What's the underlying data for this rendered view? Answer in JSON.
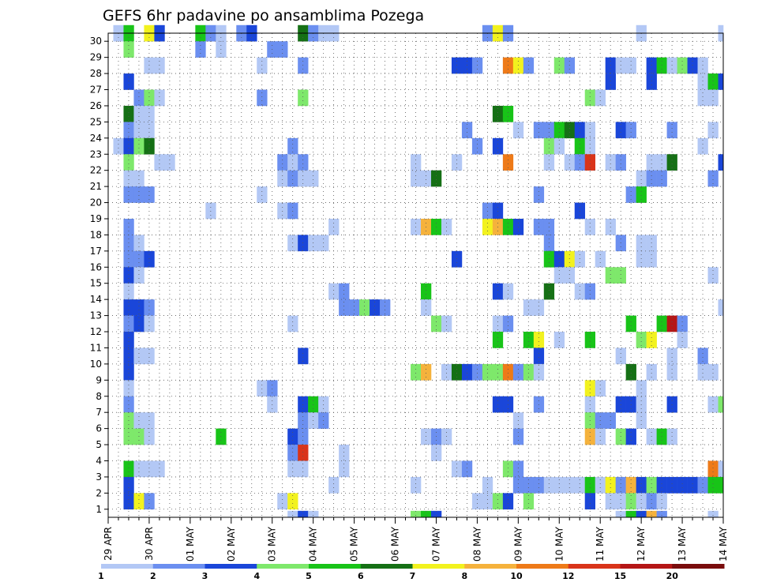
{
  "chart_data": {
    "type": "heatmap",
    "title": "GEFS 6hr padavine po ansamblima Pozega",
    "xlabel": "",
    "ylabel": "",
    "y_members": [
      1,
      2,
      3,
      4,
      5,
      6,
      7,
      8,
      9,
      10,
      11,
      12,
      13,
      14,
      15,
      16,
      17,
      18,
      19,
      20,
      21,
      22,
      23,
      24,
      25,
      26,
      27,
      28,
      29,
      30
    ],
    "x_ticks": [
      "29 APR",
      "30 APR",
      "01 MAY",
      "02 MAY",
      "03 MAY",
      "04 MAY",
      "05 MAY",
      "06 MAY",
      "07 MAY",
      "08 MAY",
      "09 MAY",
      "10 MAY",
      "11 MAY",
      "12 MAY",
      "13 MAY",
      "14 MAY"
    ],
    "x_steps": 61,
    "step_hours": 6,
    "grid": true,
    "colorbar": {
      "ticks": [
        "1",
        "2",
        "3",
        "4",
        "5",
        "6",
        "7",
        "8",
        "10",
        "12",
        "15",
        "20"
      ],
      "colors": [
        "#b3c8f5",
        "#6b8ff0",
        "#1a46d9",
        "#7ee86b",
        "#18c418",
        "#157015",
        "#f2f21e",
        "#f5b23c",
        "#ee7a18",
        "#d9341a",
        "#b51616",
        "#7a0d0d"
      ]
    },
    "cells": [
      [
        30,
        1,
        1
      ],
      [
        30,
        2,
        5
      ],
      [
        30,
        4,
        7
      ],
      [
        30,
        5,
        3
      ],
      [
        30,
        9,
        5
      ],
      [
        30,
        10,
        2
      ],
      [
        30,
        11,
        1
      ],
      [
        30,
        13,
        2
      ],
      [
        30,
        14,
        3
      ],
      [
        30,
        19,
        6
      ],
      [
        30,
        20,
        2
      ],
      [
        30,
        21,
        1
      ],
      [
        30,
        22,
        1
      ],
      [
        30,
        37,
        2
      ],
      [
        30,
        38,
        7
      ],
      [
        30,
        39,
        2
      ],
      [
        30,
        52,
        1
      ],
      [
        30,
        60,
        1
      ],
      [
        29,
        2,
        4
      ],
      [
        29,
        9,
        2
      ],
      [
        29,
        11,
        1
      ],
      [
        29,
        16,
        2
      ],
      [
        29,
        17,
        2
      ],
      [
        28,
        4,
        1
      ],
      [
        28,
        5,
        1
      ],
      [
        28,
        15,
        1
      ],
      [
        28,
        19,
        2
      ],
      [
        28,
        34,
        3
      ],
      [
        28,
        35,
        3
      ],
      [
        28,
        36,
        2
      ],
      [
        28,
        39,
        9
      ],
      [
        28,
        40,
        7
      ],
      [
        28,
        41,
        2
      ],
      [
        28,
        44,
        4
      ],
      [
        28,
        45,
        2
      ],
      [
        28,
        49,
        3
      ],
      [
        28,
        50,
        1
      ],
      [
        28,
        51,
        1
      ],
      [
        28,
        53,
        3
      ],
      [
        28,
        54,
        5
      ],
      [
        28,
        55,
        1
      ],
      [
        28,
        56,
        4
      ],
      [
        28,
        57,
        3
      ],
      [
        28,
        58,
        1
      ],
      [
        27,
        2,
        3
      ],
      [
        27,
        49,
        3
      ],
      [
        27,
        53,
        3
      ],
      [
        27,
        58,
        1
      ],
      [
        27,
        59,
        5
      ],
      [
        27,
        60,
        3
      ],
      [
        26,
        3,
        2
      ],
      [
        26,
        4,
        4
      ],
      [
        26,
        5,
        1
      ],
      [
        26,
        15,
        2
      ],
      [
        26,
        19,
        4
      ],
      [
        26,
        47,
        4
      ],
      [
        26,
        48,
        1
      ],
      [
        26,
        58,
        1
      ],
      [
        26,
        59,
        1
      ],
      [
        25,
        2,
        6
      ],
      [
        25,
        3,
        1
      ],
      [
        25,
        4,
        1
      ],
      [
        25,
        38,
        6
      ],
      [
        25,
        39,
        5
      ],
      [
        24,
        2,
        2
      ],
      [
        24,
        3,
        1
      ],
      [
        24,
        4,
        1
      ],
      [
        24,
        35,
        2
      ],
      [
        24,
        40,
        1
      ],
      [
        24,
        42,
        2
      ],
      [
        24,
        43,
        2
      ],
      [
        24,
        44,
        5
      ],
      [
        24,
        45,
        6
      ],
      [
        24,
        46,
        3
      ],
      [
        24,
        47,
        1
      ],
      [
        24,
        50,
        3
      ],
      [
        24,
        51,
        2
      ],
      [
        24,
        55,
        2
      ],
      [
        24,
        59,
        1
      ],
      [
        23,
        1,
        1
      ],
      [
        23,
        2,
        3
      ],
      [
        23,
        3,
        4
      ],
      [
        23,
        4,
        6
      ],
      [
        23,
        18,
        2
      ],
      [
        23,
        36,
        2
      ],
      [
        23,
        38,
        3
      ],
      [
        23,
        43,
        4
      ],
      [
        23,
        44,
        1
      ],
      [
        23,
        46,
        5
      ],
      [
        23,
        47,
        1
      ],
      [
        23,
        58,
        1
      ],
      [
        22,
        2,
        4
      ],
      [
        22,
        5,
        1
      ],
      [
        22,
        6,
        1
      ],
      [
        22,
        17,
        2
      ],
      [
        22,
        18,
        1
      ],
      [
        22,
        19,
        2
      ],
      [
        22,
        30,
        1
      ],
      [
        22,
        34,
        1
      ],
      [
        22,
        39,
        9
      ],
      [
        22,
        43,
        1
      ],
      [
        22,
        45,
        1
      ],
      [
        22,
        46,
        2
      ],
      [
        22,
        47,
        10
      ],
      [
        22,
        49,
        1
      ],
      [
        22,
        50,
        2
      ],
      [
        22,
        53,
        1
      ],
      [
        22,
        54,
        1
      ],
      [
        22,
        55,
        6
      ],
      [
        22,
        60,
        3
      ],
      [
        21,
        2,
        1
      ],
      [
        21,
        3,
        1
      ],
      [
        21,
        17,
        1
      ],
      [
        21,
        18,
        2
      ],
      [
        21,
        19,
        1
      ],
      [
        21,
        20,
        1
      ],
      [
        21,
        30,
        1
      ],
      [
        21,
        31,
        1
      ],
      [
        21,
        32,
        6
      ],
      [
        21,
        52,
        1
      ],
      [
        21,
        53,
        2
      ],
      [
        21,
        54,
        2
      ],
      [
        21,
        59,
        2
      ],
      [
        20,
        2,
        2
      ],
      [
        20,
        3,
        2
      ],
      [
        20,
        4,
        2
      ],
      [
        20,
        15,
        1
      ],
      [
        20,
        42,
        2
      ],
      [
        20,
        51,
        2
      ],
      [
        20,
        52,
        5
      ],
      [
        19,
        10,
        1
      ],
      [
        19,
        17,
        1
      ],
      [
        19,
        18,
        2
      ],
      [
        19,
        37,
        2
      ],
      [
        19,
        38,
        3
      ],
      [
        19,
        46,
        3
      ],
      [
        18,
        2,
        2
      ],
      [
        18,
        22,
        1
      ],
      [
        18,
        30,
        1
      ],
      [
        18,
        31,
        8
      ],
      [
        18,
        32,
        5
      ],
      [
        18,
        33,
        1
      ],
      [
        18,
        37,
        7
      ],
      [
        18,
        38,
        8
      ],
      [
        18,
        39,
        5
      ],
      [
        18,
        40,
        3
      ],
      [
        18,
        42,
        2
      ],
      [
        18,
        43,
        2
      ],
      [
        18,
        47,
        1
      ],
      [
        18,
        49,
        1
      ],
      [
        17,
        2,
        2
      ],
      [
        17,
        3,
        1
      ],
      [
        17,
        18,
        1
      ],
      [
        17,
        19,
        3
      ],
      [
        17,
        20,
        1
      ],
      [
        17,
        21,
        1
      ],
      [
        17,
        43,
        2
      ],
      [
        17,
        50,
        2
      ],
      [
        17,
        52,
        1
      ],
      [
        17,
        53,
        1
      ],
      [
        16,
        2,
        2
      ],
      [
        16,
        3,
        2
      ],
      [
        16,
        4,
        3
      ],
      [
        16,
        34,
        3
      ],
      [
        16,
        43,
        5
      ],
      [
        16,
        44,
        3
      ],
      [
        16,
        45,
        7
      ],
      [
        16,
        46,
        1
      ],
      [
        16,
        48,
        1
      ],
      [
        16,
        52,
        1
      ],
      [
        16,
        53,
        1
      ],
      [
        15,
        2,
        3
      ],
      [
        15,
        3,
        1
      ],
      [
        15,
        44,
        1
      ],
      [
        15,
        45,
        1
      ],
      [
        15,
        49,
        4
      ],
      [
        15,
        50,
        4
      ],
      [
        15,
        59,
        1
      ],
      [
        14,
        2,
        1
      ],
      [
        14,
        22,
        1
      ],
      [
        14,
        23,
        2
      ],
      [
        14,
        31,
        5
      ],
      [
        14,
        38,
        3
      ],
      [
        14,
        39,
        1
      ],
      [
        14,
        43,
        6
      ],
      [
        14,
        46,
        1
      ],
      [
        14,
        47,
        2
      ],
      [
        13,
        2,
        3
      ],
      [
        13,
        3,
        3
      ],
      [
        13,
        4,
        2
      ],
      [
        13,
        23,
        2
      ],
      [
        13,
        24,
        2
      ],
      [
        13,
        25,
        4
      ],
      [
        13,
        26,
        3
      ],
      [
        13,
        27,
        2
      ],
      [
        13,
        31,
        1
      ],
      [
        13,
        41,
        1
      ],
      [
        13,
        42,
        1
      ],
      [
        13,
        60,
        1
      ],
      [
        12,
        2,
        2
      ],
      [
        12,
        3,
        3
      ],
      [
        12,
        4,
        1
      ],
      [
        12,
        18,
        1
      ],
      [
        12,
        32,
        4
      ],
      [
        12,
        33,
        1
      ],
      [
        12,
        38,
        1
      ],
      [
        12,
        39,
        2
      ],
      [
        12,
        51,
        5
      ],
      [
        12,
        54,
        5
      ],
      [
        12,
        55,
        11
      ],
      [
        12,
        56,
        2
      ],
      [
        11,
        2,
        3
      ],
      [
        11,
        38,
        5
      ],
      [
        11,
        41,
        5
      ],
      [
        11,
        42,
        7
      ],
      [
        11,
        44,
        1
      ],
      [
        11,
        47,
        5
      ],
      [
        11,
        52,
        4
      ],
      [
        11,
        53,
        7
      ],
      [
        11,
        56,
        1
      ],
      [
        10,
        2,
        3
      ],
      [
        10,
        3,
        1
      ],
      [
        10,
        4,
        1
      ],
      [
        10,
        19,
        3
      ],
      [
        10,
        42,
        3
      ],
      [
        10,
        50,
        1
      ],
      [
        10,
        55,
        1
      ],
      [
        10,
        58,
        2
      ],
      [
        9,
        2,
        3
      ],
      [
        9,
        30,
        4
      ],
      [
        9,
        31,
        8
      ],
      [
        9,
        33,
        1
      ],
      [
        9,
        34,
        6
      ],
      [
        9,
        35,
        3
      ],
      [
        9,
        36,
        2
      ],
      [
        9,
        37,
        4
      ],
      [
        9,
        38,
        4
      ],
      [
        9,
        39,
        9
      ],
      [
        9,
        40,
        2
      ],
      [
        9,
        41,
        4
      ],
      [
        9,
        42,
        1
      ],
      [
        9,
        51,
        6
      ],
      [
        9,
        53,
        1
      ],
      [
        9,
        55,
        1
      ],
      [
        9,
        58,
        1
      ],
      [
        9,
        59,
        1
      ],
      [
        8,
        2,
        1
      ],
      [
        8,
        15,
        1
      ],
      [
        8,
        16,
        2
      ],
      [
        8,
        47,
        7
      ],
      [
        8,
        48,
        1
      ],
      [
        8,
        52,
        1
      ],
      [
        7,
        2,
        2
      ],
      [
        7,
        16,
        1
      ],
      [
        7,
        19,
        3
      ],
      [
        7,
        20,
        5
      ],
      [
        7,
        21,
        1
      ],
      [
        7,
        38,
        3
      ],
      [
        7,
        39,
        3
      ],
      [
        7,
        42,
        2
      ],
      [
        7,
        47,
        1
      ],
      [
        7,
        50,
        3
      ],
      [
        7,
        51,
        3
      ],
      [
        7,
        52,
        1
      ],
      [
        7,
        55,
        3
      ],
      [
        7,
        59,
        1
      ],
      [
        7,
        60,
        4
      ],
      [
        6,
        2,
        4
      ],
      [
        6,
        3,
        1
      ],
      [
        6,
        4,
        1
      ],
      [
        6,
        19,
        2
      ],
      [
        6,
        20,
        1
      ],
      [
        6,
        21,
        2
      ],
      [
        6,
        40,
        1
      ],
      [
        6,
        47,
        4
      ],
      [
        6,
        48,
        2
      ],
      [
        6,
        49,
        2
      ],
      [
        6,
        52,
        1
      ],
      [
        5,
        2,
        4
      ],
      [
        5,
        3,
        4
      ],
      [
        5,
        4,
        1
      ],
      [
        5,
        11,
        5
      ],
      [
        5,
        18,
        3
      ],
      [
        5,
        19,
        2
      ],
      [
        5,
        31,
        1
      ],
      [
        5,
        32,
        2
      ],
      [
        5,
        33,
        1
      ],
      [
        5,
        40,
        2
      ],
      [
        5,
        47,
        8
      ],
      [
        5,
        48,
        1
      ],
      [
        5,
        50,
        4
      ],
      [
        5,
        51,
        3
      ],
      [
        5,
        53,
        1
      ],
      [
        5,
        54,
        5
      ],
      [
        5,
        55,
        1
      ],
      [
        4,
        18,
        2
      ],
      [
        4,
        19,
        10
      ],
      [
        4,
        23,
        1
      ],
      [
        4,
        32,
        1
      ],
      [
        3,
        2,
        5
      ],
      [
        3,
        3,
        1
      ],
      [
        3,
        4,
        1
      ],
      [
        3,
        5,
        1
      ],
      [
        3,
        18,
        1
      ],
      [
        3,
        19,
        1
      ],
      [
        3,
        23,
        1
      ],
      [
        3,
        34,
        1
      ],
      [
        3,
        35,
        2
      ],
      [
        3,
        39,
        4
      ],
      [
        3,
        40,
        2
      ],
      [
        3,
        59,
        9
      ],
      [
        3,
        60,
        1
      ],
      [
        2,
        2,
        3
      ],
      [
        2,
        22,
        1
      ],
      [
        2,
        30,
        1
      ],
      [
        2,
        37,
        1
      ],
      [
        2,
        40,
        2
      ],
      [
        2,
        41,
        2
      ],
      [
        2,
        42,
        2
      ],
      [
        2,
        43,
        1
      ],
      [
        2,
        44,
        1
      ],
      [
        2,
        45,
        1
      ],
      [
        2,
        46,
        1
      ],
      [
        2,
        47,
        5
      ],
      [
        2,
        48,
        1
      ],
      [
        2,
        49,
        7
      ],
      [
        2,
        50,
        2
      ],
      [
        2,
        51,
        8
      ],
      [
        2,
        52,
        3
      ],
      [
        2,
        53,
        4
      ],
      [
        2,
        54,
        3
      ],
      [
        2,
        55,
        3
      ],
      [
        2,
        56,
        3
      ],
      [
        2,
        57,
        3
      ],
      [
        2,
        58,
        2
      ],
      [
        2,
        59,
        5
      ],
      [
        2,
        60,
        5
      ],
      [
        1,
        2,
        3
      ],
      [
        1,
        3,
        7
      ],
      [
        1,
        4,
        2
      ],
      [
        1,
        17,
        1
      ],
      [
        1,
        18,
        7
      ],
      [
        1,
        36,
        1
      ],
      [
        1,
        37,
        1
      ],
      [
        1,
        38,
        4
      ],
      [
        1,
        39,
        3
      ],
      [
        1,
        41,
        4
      ],
      [
        1,
        47,
        3
      ],
      [
        1,
        49,
        1
      ],
      [
        1,
        50,
        1
      ],
      [
        1,
        51,
        4
      ],
      [
        1,
        52,
        1
      ],
      [
        1,
        53,
        2
      ],
      [
        1,
        54,
        1
      ],
      [
        0,
        18,
        1
      ],
      [
        0,
        19,
        3
      ],
      [
        0,
        20,
        1
      ],
      [
        0,
        30,
        4
      ],
      [
        0,
        31,
        5
      ],
      [
        0,
        32,
        3
      ],
      [
        0,
        50,
        1
      ],
      [
        0,
        51,
        5
      ],
      [
        0,
        52,
        3
      ],
      [
        0,
        53,
        8
      ],
      [
        0,
        54,
        2
      ],
      [
        0,
        59,
        1
      ]
    ]
  }
}
